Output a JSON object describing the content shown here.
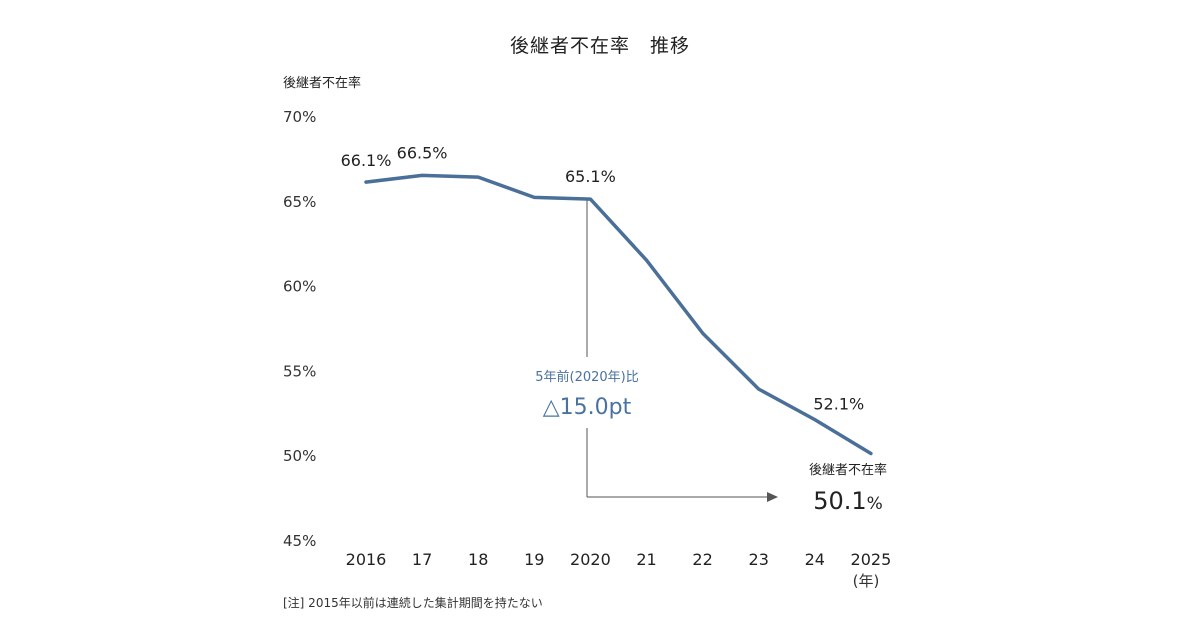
{
  "chart_data": {
    "type": "line",
    "title": "後継者不在率　推移",
    "ylabel": "後継者不在率",
    "x_unit": "(年)",
    "categories": [
      "2016",
      "17",
      "18",
      "19",
      "2020",
      "21",
      "22",
      "23",
      "24",
      "2025"
    ],
    "series": [
      {
        "values": [
          66.1,
          66.5,
          66.4,
          65.2,
          65.1,
          61.5,
          57.2,
          53.9,
          52.1,
          50.1
        ],
        "color": "#4a6f98"
      }
    ],
    "ylim": [
      45,
      70
    ],
    "yticks": [
      45,
      50,
      55,
      60,
      65,
      70
    ],
    "ytick_labels": [
      "45%",
      "50%",
      "55%",
      "60%",
      "65%",
      "70%"
    ],
    "data_labels": [
      {
        "index": 0,
        "text": "66.1%"
      },
      {
        "index": 1,
        "text": "66.5%"
      },
      {
        "index": 4,
        "text": "65.1%"
      },
      {
        "index": 8,
        "text": "52.1%"
      }
    ],
    "annotation": {
      "subtitle": "5年前(2020年)比",
      "value": "△15.0pt",
      "final_label": "後継者不在率",
      "final_value_number": "50.1",
      "final_value_unit": "%",
      "color": "#4a72a0"
    },
    "note": "[注] 2015年以前は連続した集計期間を持たない",
    "grid": false,
    "legend": "none"
  }
}
